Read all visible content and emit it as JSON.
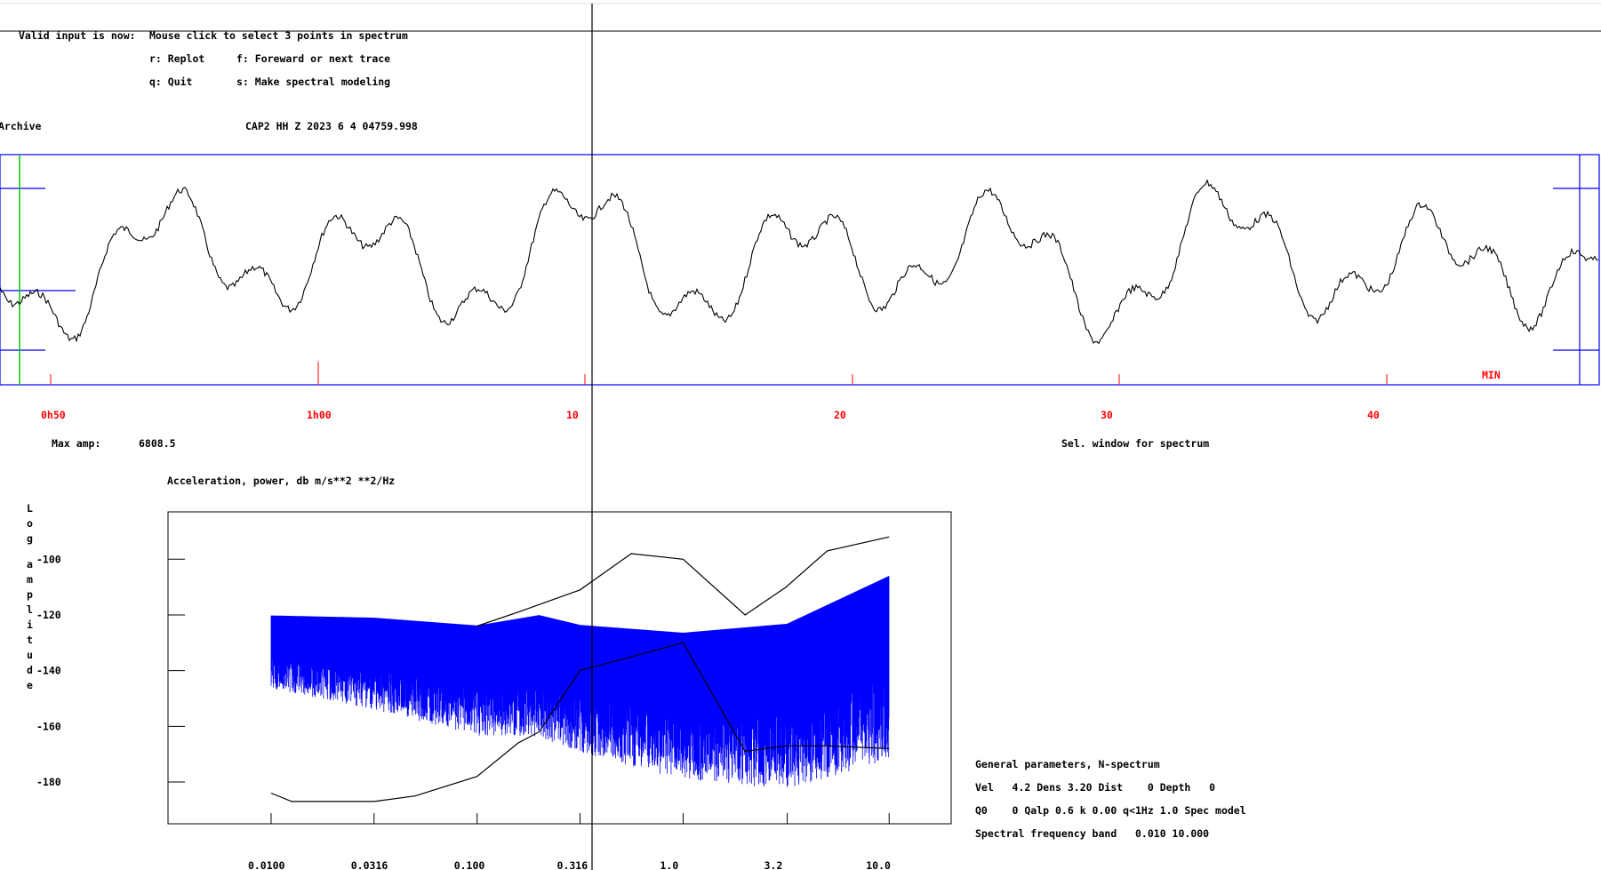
{
  "header": {
    "valid_input_label": "Valid input is now:",
    "valid_input_value": "Mouse click to select 3 points in spectrum",
    "commands": {
      "replot": "r: Replot",
      "forward": "f: Foreward or next trace",
      "quit": "q: Quit",
      "spectral": "s: Make spectral modeling"
    }
  },
  "trace": {
    "archive_label": "Archive",
    "station_info": "CAP2  HH Z   2023 6 4 04759.998",
    "time_ticks": [
      "0h50",
      "1h00",
      "10",
      "20",
      "30",
      "40"
    ],
    "unit_label": "MIN",
    "max_amp_label": "Max amp:",
    "max_amp_value": "6808.5",
    "window_prompt": "Sel. window for spectrum"
  },
  "spectrum": {
    "title": "Acceleration, power, db m/s**2 **2/Hz",
    "y_axis_label": "Log amplitude",
    "params": {
      "heading": "General parameters, N-spectrum",
      "line1": "Vel   4.2 Dens 3.20 Dist    0 Depth   0",
      "line2": "Q0    0 Qalp 0.6 k 0.00 q<1Hz 1.0 Spec model",
      "line3": "Spectral frequency band   0.010 10.000"
    }
  },
  "chart_data": {
    "type": "line",
    "title": "Acceleration, power, db m/s**2 **2/Hz",
    "xlabel": "",
    "ylabel": "Log amplitude",
    "x_scale": "log",
    "x_ticks": [
      "0.0100",
      "0.0316",
      "0.100",
      "0.316",
      "1.0",
      "3.2",
      "10.0"
    ],
    "y_ticks": [
      -100,
      -120,
      -140,
      -160,
      -180
    ],
    "ylim": [
      -195,
      -83
    ],
    "grid": false,
    "series": [
      {
        "color": "#0000ff",
        "x": [
          0.01,
          0.0316,
          0.1,
          0.2,
          0.316,
          1.0,
          3.2,
          10.0
        ],
        "y": [
          -125,
          -127,
          -131,
          -128,
          -132,
          -136,
          -134,
          -118
        ]
      },
      {
        "color": "#000000",
        "x": [
          0.01,
          0.0126,
          0.0316,
          0.05,
          0.1,
          0.158,
          0.2,
          0.316,
          1.0,
          2.0,
          3.16,
          5.0,
          10.0
        ],
        "y": [
          -184,
          -187,
          -187,
          -185,
          -178,
          -166,
          -162,
          -140,
          -130,
          -169,
          -167,
          -167,
          -168
        ]
      },
      {
        "color": "#000000",
        "x": [
          0.1,
          0.158,
          0.316,
          0.56,
          1.0,
          2.0,
          3.16,
          5.0,
          10.0
        ],
        "y": [
          -124,
          -119,
          -111,
          -98,
          -100,
          -120,
          -110,
          -97,
          -92
        ]
      }
    ]
  }
}
